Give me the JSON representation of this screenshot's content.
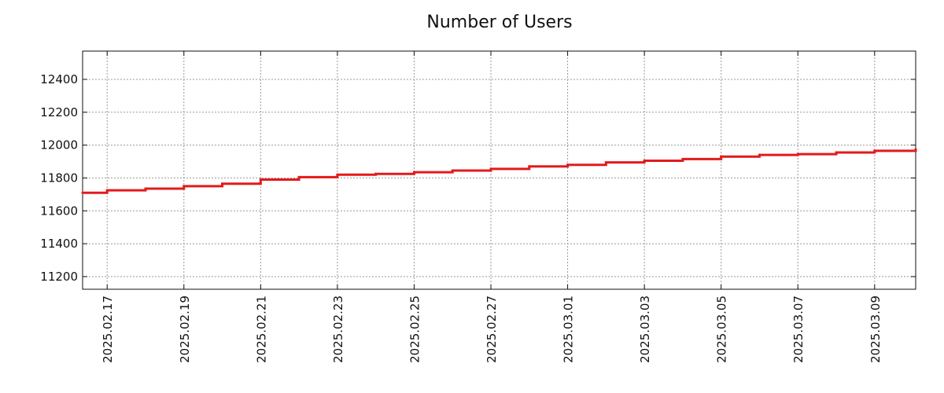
{
  "chart_data": {
    "type": "line",
    "title": "Number of Users",
    "xlabel": "",
    "ylabel": "",
    "x_unit": "days since 2025.02.17",
    "xlim": [
      -0.64,
      21.07
    ],
    "ylim": [
      11123,
      12572
    ],
    "grid": true,
    "line_style": "step",
    "x_tick_labels": [
      "2025.02.17",
      "2025.02.19",
      "2025.02.21",
      "2025.02.23",
      "2025.02.25",
      "2025.02.27",
      "2025.03.01",
      "2025.03.03",
      "2025.03.05",
      "2025.03.07",
      "2025.03.09"
    ],
    "x_tick_values": [
      0,
      2,
      4,
      6,
      8,
      10,
      12,
      14,
      16,
      18,
      20
    ],
    "y_ticks": [
      11200,
      11400,
      11600,
      11800,
      12000,
      12200,
      12400
    ],
    "series": [
      {
        "name": "Number of Users",
        "color": "#e31a1c",
        "x": [
          -0.64,
          0,
          1,
          2,
          3,
          4,
          5,
          6,
          7,
          8,
          9,
          10,
          11,
          12,
          13,
          14,
          15,
          16,
          17,
          18,
          19,
          20,
          21.07
        ],
        "y": [
          11710,
          11725,
          11735,
          11750,
          11765,
          11790,
          11805,
          11820,
          11825,
          11835,
          11845,
          11855,
          11870,
          11880,
          11895,
          11905,
          11915,
          11930,
          11940,
          11945,
          11955,
          11965,
          11975
        ]
      }
    ]
  }
}
